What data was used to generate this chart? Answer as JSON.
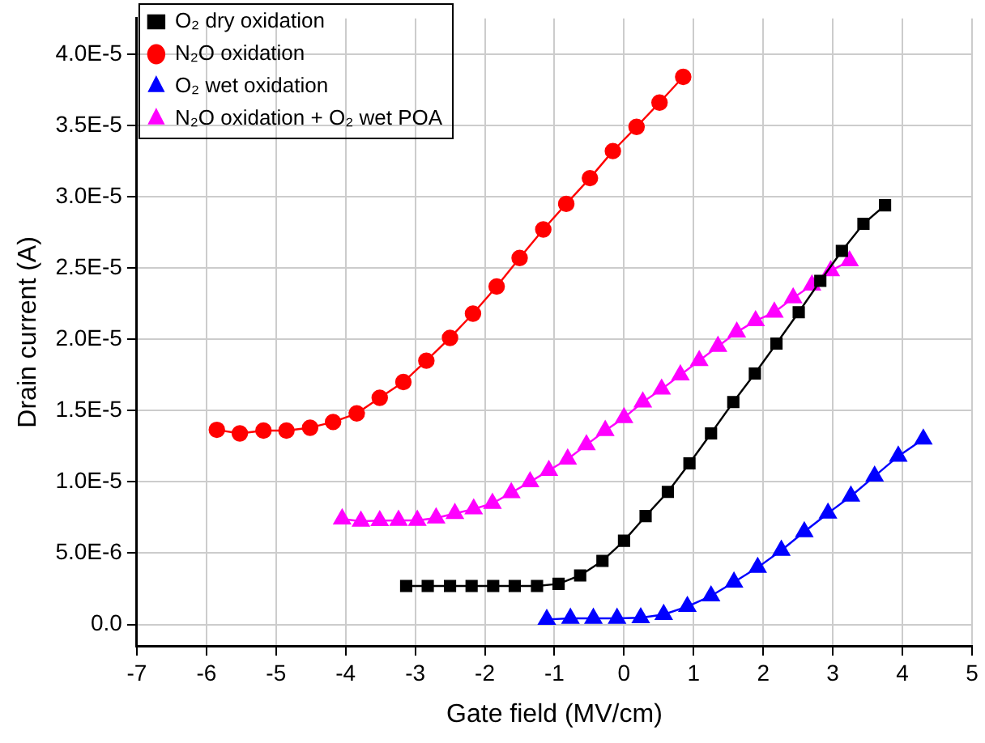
{
  "chart_data": {
    "type": "line",
    "xlabel": "Gate field (MV/cm)",
    "ylabel": "Drain current (A)",
    "xlim": [
      -7,
      5
    ],
    "xticks": [
      -7,
      -6,
      -5,
      -4,
      -3,
      -2,
      -1,
      0,
      1,
      2,
      3,
      4,
      5
    ],
    "ylim": [
      -1.5e-06,
      4.25e-05
    ],
    "yticks": [
      {
        "value": 0,
        "label": "0.0"
      },
      {
        "value": 5e-06,
        "label": "5.0E-6"
      },
      {
        "value": 1e-05,
        "label": "1.0E-5"
      },
      {
        "value": 1.5e-05,
        "label": "1.5E-5"
      },
      {
        "value": 2e-05,
        "label": "2.0E-5"
      },
      {
        "value": 2.5e-05,
        "label": "2.5E-5"
      },
      {
        "value": 3e-05,
        "label": "3.0E-5"
      },
      {
        "value": 3.5e-05,
        "label": "3.5E-5"
      },
      {
        "value": 4e-05,
        "label": "4.0E-5"
      }
    ],
    "grid": true,
    "legend": "top left",
    "series": [
      {
        "name": "O₂ dry oxidation",
        "color": "#000000",
        "marker": "square",
        "x": [
          -3.13,
          -2.82,
          -2.5,
          -2.19,
          -1.88,
          -1.57,
          -1.25,
          -0.94,
          -0.63,
          -0.31,
          0,
          0.31,
          0.63,
          0.94,
          1.25,
          1.57,
          1.88,
          2.19,
          2.51,
          2.82,
          3.13,
          3.44,
          3.75
        ],
        "values": [
          2.7e-06,
          2.7e-06,
          2.7e-06,
          2.7e-06,
          2.7e-06,
          2.7e-06,
          2.7e-06,
          2.85e-06,
          3.44e-06,
          4.46e-06,
          5.87e-06,
          7.6e-06,
          9.3e-06,
          1.13e-05,
          1.34e-05,
          1.56e-05,
          1.76e-05,
          1.97e-05,
          2.19e-05,
          2.41e-05,
          2.62e-05,
          2.81e-05,
          2.94e-05
        ]
      },
      {
        "name": "N₂O oxidation",
        "color": "#ff0000",
        "marker": "circle",
        "x": [
          -5.85,
          -5.52,
          -5.18,
          -4.85,
          -4.51,
          -4.18,
          -3.84,
          -3.51,
          -3.17,
          -2.84,
          -2.5,
          -2.17,
          -1.83,
          -1.5,
          -1.16,
          -0.83,
          -0.49,
          -0.16,
          0.18,
          0.51,
          0.85
        ],
        "values": [
          1.365e-05,
          1.34e-05,
          1.36e-05,
          1.36e-05,
          1.38e-05,
          1.42e-05,
          1.48e-05,
          1.59e-05,
          1.7e-05,
          1.85e-05,
          2.01e-05,
          2.18e-05,
          2.37e-05,
          2.57e-05,
          2.77e-05,
          2.95e-05,
          3.13e-05,
          3.32e-05,
          3.49e-05,
          3.66e-05,
          3.84e-05
        ]
      },
      {
        "name": "O₂ wet oxidation",
        "color": "#0000ff",
        "marker": "triangle",
        "x": [
          -1.11,
          -0.77,
          -0.44,
          -0.1,
          0.24,
          0.57,
          0.91,
          1.25,
          1.58,
          1.92,
          2.26,
          2.59,
          2.93,
          3.26,
          3.6,
          3.94,
          4.3
        ],
        "values": [
          3.5e-07,
          4.3e-07,
          4.3e-07,
          4.3e-07,
          4.7e-07,
          7e-07,
          1.26e-06,
          2e-06,
          2.97e-06,
          4e-06,
          5.2e-06,
          6.5e-06,
          7.8e-06,
          9e-06,
          1.04e-05,
          1.18e-05,
          1.3e-05
        ]
      },
      {
        "name": "N₂O oxidation + O₂ wet POA",
        "color": "#ff00ff",
        "marker": "triangle",
        "x": [
          -4.05,
          -3.78,
          -3.51,
          -3.24,
          -2.97,
          -2.7,
          -2.43,
          -2.16,
          -1.89,
          -1.62,
          -1.35,
          -1.08,
          -0.81,
          -0.54,
          -0.27,
          0,
          0.27,
          0.54,
          0.81,
          1.08,
          1.35,
          1.62,
          1.89,
          2.16,
          2.43,
          2.7,
          2.97,
          3.24
        ],
        "values": [
          7.4e-06,
          7.24e-06,
          7.28e-06,
          7.3e-06,
          7.3e-06,
          7.47e-06,
          7.78e-06,
          8.1e-06,
          8.49e-06,
          9.24e-06,
          1e-05,
          1.08e-05,
          1.16e-05,
          1.26e-05,
          1.36e-05,
          1.45e-05,
          1.56e-05,
          1.65e-05,
          1.75e-05,
          1.85e-05,
          1.95e-05,
          2.05e-05,
          2.13e-05,
          2.19e-05,
          2.29e-05,
          2.38e-05,
          2.48e-05,
          2.55e-05
        ]
      }
    ]
  }
}
